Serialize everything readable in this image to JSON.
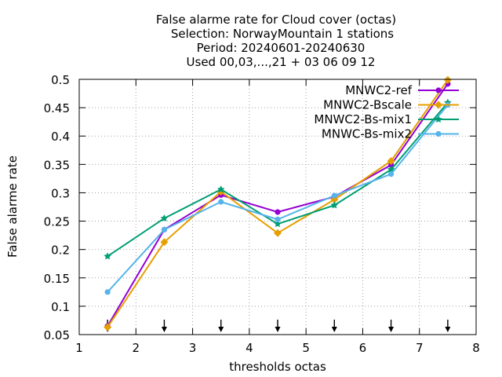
{
  "chart_data": {
    "type": "line",
    "title_lines": [
      "False alarme rate  for Cloud cover (octas)",
      "Selection: NorwayMountain      1 stations",
      "Period: 20240601-20240630",
      "Used 00,03,...,21 + 03 06 09 12"
    ],
    "xlabel": "thresholds octas",
    "ylabel": "False alarme rate",
    "xlim": [
      1,
      8
    ],
    "ylim": [
      0.05,
      0.5
    ],
    "xticks": [
      1,
      2,
      3,
      4,
      5,
      6,
      7,
      8
    ],
    "yticks": [
      0.05,
      0.1,
      0.15,
      0.2,
      0.25,
      0.3,
      0.35,
      0.4,
      0.45,
      0.5
    ],
    "ytick_labels": [
      "0.05",
      "0.1",
      "0.15",
      "0.2",
      "0.25",
      "0.3",
      "0.35",
      "0.4",
      "0.45",
      "0.5"
    ],
    "grid": true,
    "legend_position": "top-right",
    "x": [
      1.5,
      2.5,
      3.5,
      4.5,
      5.5,
      6.5,
      7.5
    ],
    "threshold_markers": [
      1.5,
      2.5,
      3.5,
      4.5,
      5.5,
      6.5,
      7.5
    ],
    "series": [
      {
        "name": "MNWC2-ref",
        "color": "#9400d3",
        "marker": "circle",
        "values": [
          0.065,
          0.235,
          0.296,
          0.266,
          0.293,
          0.349,
          0.492
        ]
      },
      {
        "name": "MNWC2-Bscale",
        "color": "#e69f00",
        "marker": "diamond",
        "values": [
          0.063,
          0.213,
          0.302,
          0.229,
          0.288,
          0.356,
          0.499
        ]
      },
      {
        "name": "MNWC2-Bs-mix1",
        "color": "#009e73",
        "marker": "star",
        "values": [
          0.188,
          0.255,
          0.306,
          0.245,
          0.278,
          0.341,
          0.459
        ]
      },
      {
        "name": "MNWC-Bs-mix2",
        "color": "#56b4e9",
        "marker": "circle",
        "values": [
          0.125,
          0.235,
          0.284,
          0.253,
          0.295,
          0.333,
          0.455
        ]
      }
    ]
  }
}
